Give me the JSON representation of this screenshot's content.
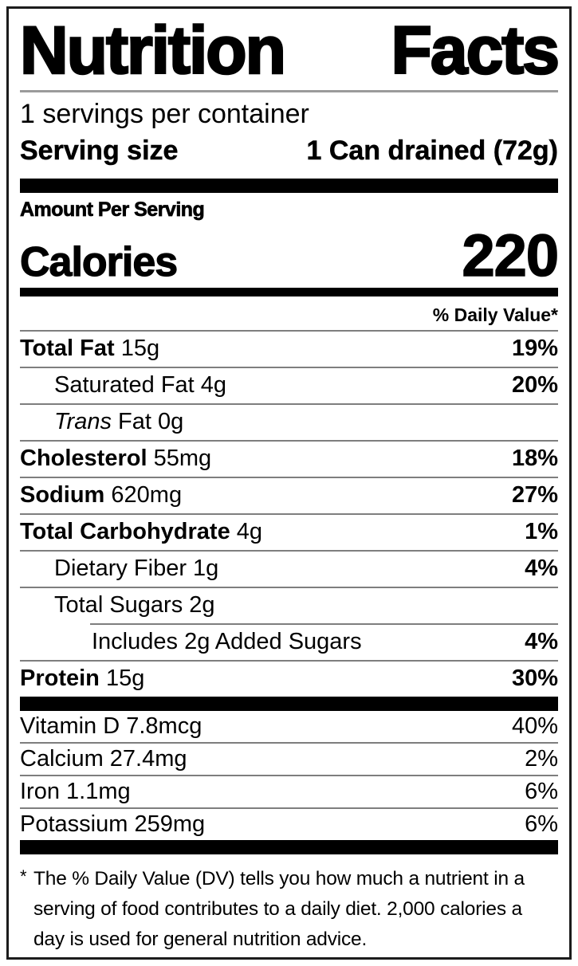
{
  "label": {
    "title": "Nutrition Facts",
    "servings_per_container": "1 servings per container",
    "serving_size_label": "Serving size",
    "serving_size_value": "1 Can drained (72g)",
    "amount_per_serving": "Amount Per Serving",
    "calories_label": "Calories",
    "calories_value": "220",
    "daily_value_header": "% Daily Value*",
    "nutrients": [
      {
        "name": "Total Fat",
        "amount": "15g",
        "pct": "19%",
        "indent": 0,
        "name_bold": true,
        "pct_bold": true
      },
      {
        "name": "Saturated Fat",
        "amount": "4g",
        "pct": "20%",
        "indent": 1,
        "name_bold": false,
        "pct_bold": true
      },
      {
        "name_italic": "Trans",
        "name": "Fat",
        "amount": "0g",
        "pct": "",
        "indent": 1,
        "name_bold": false,
        "pct_bold": false
      },
      {
        "name": "Cholesterol",
        "amount": "55mg",
        "pct": "18%",
        "indent": 0,
        "name_bold": true,
        "pct_bold": true
      },
      {
        "name": "Sodium",
        "amount": "620mg",
        "pct": "27%",
        "indent": 0,
        "name_bold": true,
        "pct_bold": true
      },
      {
        "name": "Total Carbohydrate",
        "amount": "4g",
        "pct": "1%",
        "indent": 0,
        "name_bold": true,
        "pct_bold": true
      },
      {
        "name": "Dietary Fiber",
        "amount": "1g",
        "pct": "4%",
        "indent": 1,
        "name_bold": false,
        "pct_bold": true
      },
      {
        "name": "Total Sugars",
        "amount": "2g",
        "pct": "",
        "indent": 1,
        "name_bold": false,
        "pct_bold": false
      },
      {
        "name": "Includes 2g Added Sugars",
        "amount": "",
        "pct": "4%",
        "indent": 2,
        "name_bold": false,
        "pct_bold": true,
        "divider_indent": true
      },
      {
        "name": "Protein",
        "amount": "15g",
        "pct": "30%",
        "indent": 0,
        "name_bold": true,
        "pct_bold": true
      }
    ],
    "vitamins": [
      {
        "name": "Vitamin D",
        "amount": "7.8mcg",
        "pct": "40%"
      },
      {
        "name": "Calcium",
        "amount": "27.4mg",
        "pct": "2%"
      },
      {
        "name": "Iron",
        "amount": "1.1mg",
        "pct": "6%"
      },
      {
        "name": "Potassium",
        "amount": "259mg",
        "pct": "6%"
      }
    ],
    "footnote_marker": "*",
    "footnote": "The % Daily Value (DV) tells you how much a nutrient in a serving of food contributes to a daily diet. 2,000 calories a day is used for general nutrition advice."
  },
  "colors": {
    "text": "#000000",
    "background": "#ffffff",
    "bar": "#000000",
    "hairline": "#7e7e7e",
    "title_rule": "#9b9b9b",
    "border": "#1c1c1c"
  }
}
